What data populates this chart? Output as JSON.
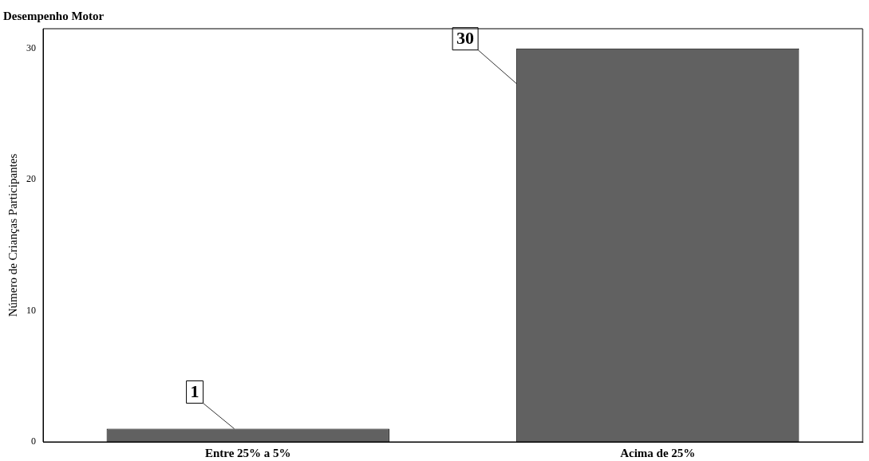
{
  "chart_data": {
    "type": "bar",
    "title": "Desempenho Motor",
    "ylabel": "Número de Crianças Participantes",
    "categories": [
      "Entre 25% a 5%",
      "Acima de 25%"
    ],
    "values": [
      1,
      30
    ],
    "color": "#616161",
    "ylim": [
      0,
      31.5
    ],
    "yticks": [
      0,
      10,
      20,
      30
    ],
    "grid": false,
    "legend": false,
    "data_labels": true
  }
}
